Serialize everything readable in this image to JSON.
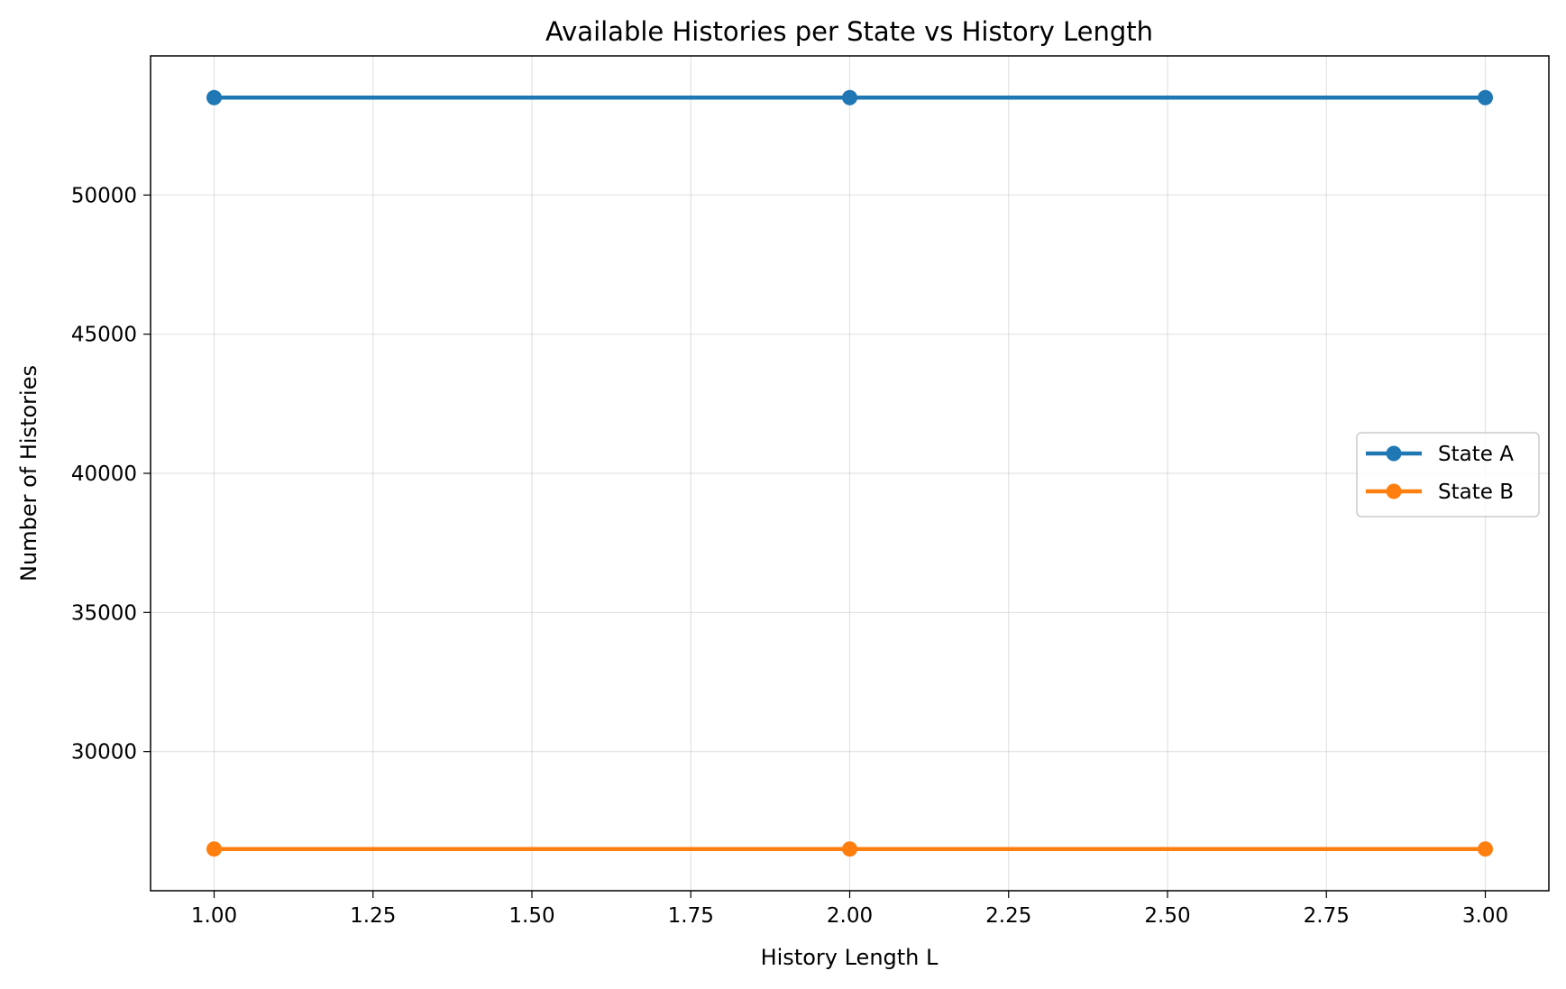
{
  "chart_data": {
    "type": "line",
    "title": "Available Histories per State vs History Length",
    "xlabel": "History Length L",
    "ylabel": "Number of Histories",
    "x": [
      1,
      2,
      3
    ],
    "series": [
      {
        "name": "State A",
        "values": [
          53500,
          53500,
          53500
        ],
        "color": "#1f77b4"
      },
      {
        "name": "State B",
        "values": [
          26500,
          26500,
          26500
        ],
        "color": "#ff7f0e"
      }
    ],
    "xlim": [
      0.9,
      3.1
    ],
    "ylim": [
      25000,
      55000
    ],
    "xticks": [
      1.0,
      1.25,
      1.5,
      1.75,
      2.0,
      2.25,
      2.5,
      2.75,
      3.0
    ],
    "xtick_labels": [
      "1.00",
      "1.25",
      "1.50",
      "1.75",
      "2.00",
      "2.25",
      "2.50",
      "2.75",
      "3.00"
    ],
    "yticks": [
      30000,
      35000,
      40000,
      45000,
      50000
    ],
    "ytick_labels": [
      "30000",
      "35000",
      "40000",
      "45000",
      "50000"
    ],
    "grid": true,
    "legend_position": "center-right"
  }
}
